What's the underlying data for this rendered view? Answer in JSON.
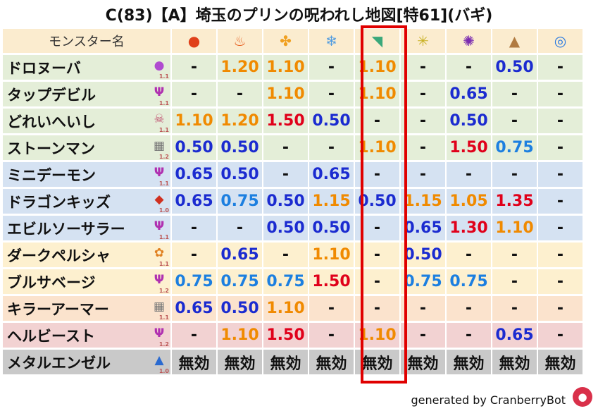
{
  "title": "C(83)【A】埼玉のプリンの呪われし地図[特61](バギ)",
  "header": {
    "name_label": "モンスター名",
    "elements": [
      {
        "icon": "fireball-icon",
        "glyph": "●",
        "color": "#e0401a"
      },
      {
        "icon": "flame-icon",
        "glyph": "♨",
        "color": "#e65a1a"
      },
      {
        "icon": "explosion-icon",
        "glyph": "✤",
        "color": "#f0a020"
      },
      {
        "icon": "ice-icon",
        "glyph": "❄",
        "color": "#4f9be0"
      },
      {
        "icon": "wind-icon",
        "glyph": "◥",
        "color": "#3aa87a"
      },
      {
        "icon": "lightning-icon",
        "glyph": "✳",
        "color": "#c8b020"
      },
      {
        "icon": "dark-icon",
        "glyph": "✺",
        "color": "#7a2bb0"
      },
      {
        "icon": "earth-icon",
        "glyph": "▲",
        "color": "#b07a40"
      },
      {
        "icon": "water-icon",
        "glyph": "◎",
        "color": "#2a7ae0"
      }
    ]
  },
  "rows": [
    {
      "name": "ドロヌーバ",
      "icon": "purple-blob-icon",
      "glyph": "●",
      "icolor": "#b04bd0",
      "level": "1.1",
      "bg": "g",
      "cells": [
        [
          "-",
          "dash"
        ],
        [
          "1.20",
          "orange"
        ],
        [
          "1.10",
          "orange"
        ],
        [
          "-",
          "dash"
        ],
        [
          "1.10",
          "orange"
        ],
        [
          "-",
          "dash"
        ],
        [
          "-",
          "dash"
        ],
        [
          "0.50",
          "navy"
        ],
        [
          "-",
          "dash"
        ]
      ]
    },
    {
      "name": "タップデビル",
      "icon": "devil-trident-icon",
      "glyph": "Ψ",
      "icolor": "#b030b0",
      "level": "1.1",
      "bg": "g",
      "cells": [
        [
          "-",
          "dash"
        ],
        [
          "-",
          "dash"
        ],
        [
          "1.10",
          "orange"
        ],
        [
          "-",
          "dash"
        ],
        [
          "1.10",
          "orange"
        ],
        [
          "-",
          "dash"
        ],
        [
          "0.65",
          "navy"
        ],
        [
          "-",
          "dash"
        ],
        [
          "-",
          "dash"
        ]
      ]
    },
    {
      "name": "どれいへいし",
      "icon": "skull-icon",
      "glyph": "☠",
      "icolor": "#c05070",
      "level": "1.1",
      "bg": "g",
      "cells": [
        [
          "1.10",
          "orange"
        ],
        [
          "1.20",
          "orange"
        ],
        [
          "1.50",
          "red"
        ],
        [
          "0.50",
          "navy"
        ],
        [
          "-",
          "dash"
        ],
        [
          "-",
          "dash"
        ],
        [
          "0.50",
          "navy"
        ],
        [
          "-",
          "dash"
        ],
        [
          "-",
          "dash"
        ]
      ]
    },
    {
      "name": "ストーンマン",
      "icon": "brick-icon",
      "glyph": "▦",
      "icolor": "#777777",
      "level": "1.2",
      "bg": "g",
      "cells": [
        [
          "0.50",
          "navy"
        ],
        [
          "0.50",
          "navy"
        ],
        [
          "-",
          "dash"
        ],
        [
          "-",
          "dash"
        ],
        [
          "1.10",
          "orange"
        ],
        [
          "-",
          "dash"
        ],
        [
          "1.50",
          "red"
        ],
        [
          "0.75",
          "blue"
        ],
        [
          "-",
          "dash"
        ]
      ]
    },
    {
      "name": "ミニデーモン",
      "icon": "devil-trident-icon",
      "glyph": "Ψ",
      "icolor": "#b030b0",
      "level": "1.1",
      "bg": "b",
      "cells": [
        [
          "0.65",
          "navy"
        ],
        [
          "0.50",
          "navy"
        ],
        [
          "-",
          "dash"
        ],
        [
          "0.65",
          "navy"
        ],
        [
          "-",
          "dash"
        ],
        [
          "-",
          "dash"
        ],
        [
          "-",
          "dash"
        ],
        [
          "-",
          "dash"
        ],
        [
          "-",
          "dash"
        ]
      ]
    },
    {
      "name": "ドラゴンキッズ",
      "icon": "dragon-icon",
      "glyph": "◆",
      "icolor": "#d03020",
      "level": "1.0",
      "bg": "b",
      "cells": [
        [
          "0.65",
          "navy"
        ],
        [
          "0.75",
          "blue"
        ],
        [
          "0.50",
          "navy"
        ],
        [
          "1.15",
          "orange"
        ],
        [
          "0.50",
          "navy"
        ],
        [
          "1.15",
          "orange"
        ],
        [
          "1.05",
          "orange"
        ],
        [
          "1.35",
          "red"
        ],
        [
          "-",
          "dash"
        ]
      ]
    },
    {
      "name": "エビルソーサラー",
      "icon": "devil-trident-icon",
      "glyph": "Ψ",
      "icolor": "#b030b0",
      "level": "1.1",
      "bg": "b",
      "cells": [
        [
          "-",
          "dash"
        ],
        [
          "-",
          "dash"
        ],
        [
          "0.50",
          "navy"
        ],
        [
          "0.50",
          "navy"
        ],
        [
          "-",
          "dash"
        ],
        [
          "0.65",
          "navy"
        ],
        [
          "1.30",
          "red"
        ],
        [
          "1.10",
          "orange"
        ],
        [
          "-",
          "dash"
        ]
      ]
    },
    {
      "name": "ダークペルシャ",
      "icon": "paw-icon",
      "glyph": "✿",
      "icolor": "#e08020",
      "level": "1.1",
      "bg": "y",
      "cells": [
        [
          "-",
          "dash"
        ],
        [
          "0.65",
          "navy"
        ],
        [
          "-",
          "dash"
        ],
        [
          "1.10",
          "orange"
        ],
        [
          "-",
          "dash"
        ],
        [
          "0.50",
          "navy"
        ],
        [
          "-",
          "dash"
        ],
        [
          "-",
          "dash"
        ],
        [
          "-",
          "dash"
        ]
      ]
    },
    {
      "name": "ブルサベージ",
      "icon": "devil-trident-icon",
      "glyph": "Ψ",
      "icolor": "#b030b0",
      "level": "1.2",
      "bg": "y",
      "cells": [
        [
          "0.75",
          "blue"
        ],
        [
          "0.75",
          "blue"
        ],
        [
          "0.75",
          "blue"
        ],
        [
          "1.50",
          "red"
        ],
        [
          "-",
          "dash"
        ],
        [
          "0.75",
          "blue"
        ],
        [
          "0.75",
          "blue"
        ],
        [
          "-",
          "dash"
        ],
        [
          "-",
          "dash"
        ]
      ]
    },
    {
      "name": "キラーアーマー",
      "icon": "brick-icon",
      "glyph": "▦",
      "icolor": "#777777",
      "level": "1.1",
      "bg": "o",
      "cells": [
        [
          "0.65",
          "navy"
        ],
        [
          "0.50",
          "navy"
        ],
        [
          "1.10",
          "orange"
        ],
        [
          "-",
          "dash"
        ],
        [
          "-",
          "dash"
        ],
        [
          "-",
          "dash"
        ],
        [
          "-",
          "dash"
        ],
        [
          "-",
          "dash"
        ],
        [
          "-",
          "dash"
        ]
      ]
    },
    {
      "name": "ヘルビースト",
      "icon": "devil-trident-icon",
      "glyph": "Ψ",
      "icolor": "#b030b0",
      "level": "1.2",
      "bg": "r",
      "cells": [
        [
          "-",
          "dash"
        ],
        [
          "1.10",
          "orange"
        ],
        [
          "1.50",
          "red"
        ],
        [
          "-",
          "dash"
        ],
        [
          "1.10",
          "orange"
        ],
        [
          "-",
          "dash"
        ],
        [
          "-",
          "dash"
        ],
        [
          "0.65",
          "navy"
        ],
        [
          "-",
          "dash"
        ]
      ]
    },
    {
      "name": "メタルエンゼル",
      "icon": "slime-icon",
      "glyph": "▲",
      "icolor": "#2a6ad0",
      "level": "1.0",
      "bg": "s",
      "cells": [
        [
          "無効",
          "dark"
        ],
        [
          "無効",
          "dark"
        ],
        [
          "無効",
          "dark"
        ],
        [
          "無効",
          "dark"
        ],
        [
          "無効",
          "dark"
        ],
        [
          "無効",
          "dark"
        ],
        [
          "無効",
          "dark"
        ],
        [
          "無効",
          "dark"
        ],
        [
          "無効",
          "dark"
        ]
      ]
    }
  ],
  "footer": "generated by CranberryBot"
}
